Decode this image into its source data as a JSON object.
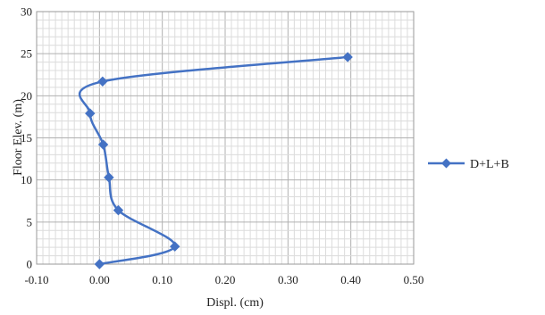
{
  "chart_data": {
    "type": "scatter",
    "title": "",
    "xlabel": "Displ. (cm)",
    "ylabel": "Floor Elev. (m)",
    "xlim": [
      -0.1,
      0.5
    ],
    "ylim": [
      0,
      30
    ],
    "x_ticks": [
      -0.1,
      0.0,
      0.1,
      0.2,
      0.3,
      0.4,
      0.5
    ],
    "x_tick_labels": [
      "-0.10",
      "0.00",
      "0.10",
      "0.20",
      "0.30",
      "0.40",
      "0.50"
    ],
    "y_ticks": [
      0,
      5,
      10,
      15,
      20,
      25,
      30
    ],
    "y_tick_labels": [
      "0",
      "5",
      "10",
      "15",
      "20",
      "25",
      "30"
    ],
    "grid": true,
    "legend_position": "right",
    "smooth_lines": true,
    "series": [
      {
        "name": "D+L+B",
        "color": "#4472C4",
        "marker": "diamond",
        "x": [
          0.0,
          0.12,
          0.03,
          0.015,
          0.006,
          -0.015,
          0.005,
          0.395
        ],
        "y": [
          0.0,
          2.1,
          6.4,
          10.3,
          14.2,
          17.9,
          21.7,
          24.6
        ]
      }
    ]
  }
}
